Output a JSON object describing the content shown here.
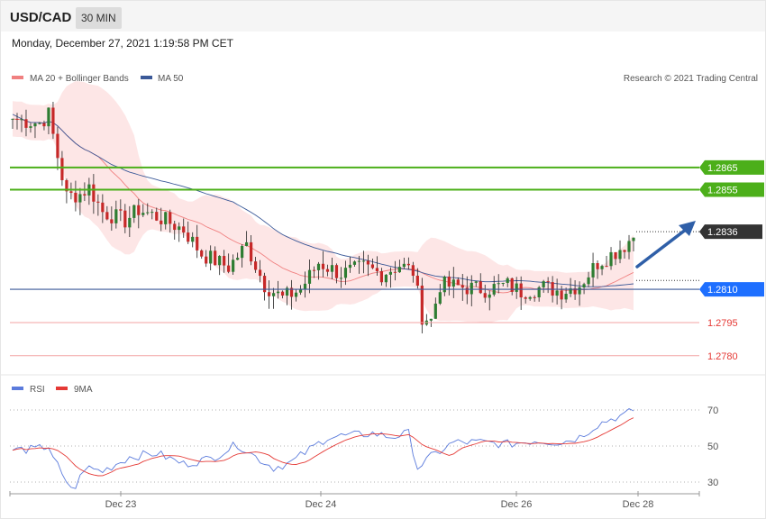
{
  "header": {
    "symbol": "USD/CAD",
    "timeframe": "30 MIN"
  },
  "datetime": "Monday, December 27, 2021 1:19:58 PM CET",
  "legend": {
    "ma20": "MA 20 + Bollinger Bands",
    "ma50": "MA 50",
    "rsi": "RSI",
    "ma9": "9MA",
    "copyright": "Research © 2021 Trading Central"
  },
  "colors": {
    "up": "#2e7d32",
    "down": "#c62828",
    "ma20": "#f08080",
    "ma50": "#3b5998",
    "band": "#fde0e0",
    "resistance": "#4caf1a",
    "support": "#1e6fff",
    "support_red": "#e53935",
    "current": "#333333",
    "rsi": "#5b7bdc",
    "ma9": "#e53935",
    "arrow": "#2f5fa8"
  },
  "chart_data": {
    "type": "candlestick",
    "y_range": [
      1.2773,
      1.2902
    ],
    "x_ticks": [
      "Dec 23",
      "Dec 24",
      "Dec 26",
      "Dec 28"
    ],
    "levels": [
      {
        "value": 1.2865,
        "label": "1.2865",
        "kind": "resistance"
      },
      {
        "value": 1.2855,
        "label": "1.2855",
        "kind": "resistance"
      },
      {
        "value": 1.2836,
        "label": "1.2836",
        "kind": "current"
      },
      {
        "value": 1.281,
        "label": "1.2810",
        "kind": "support"
      },
      {
        "value": 1.2795,
        "label": "1.2795",
        "kind": "support_red"
      },
      {
        "value": 1.278,
        "label": "1.2780",
        "kind": "support_red"
      }
    ],
    "anchors": [
      [
        0,
        1.2887
      ],
      [
        6,
        1.2885
      ],
      [
        8,
        1.2889
      ],
      [
        10,
        1.287
      ],
      [
        12,
        1.2852
      ],
      [
        15,
        1.2853
      ],
      [
        17,
        1.2856
      ],
      [
        20,
        1.2845
      ],
      [
        25,
        1.2841
      ],
      [
        28,
        1.2846
      ],
      [
        33,
        1.2842
      ],
      [
        38,
        1.2837
      ],
      [
        42,
        1.2826
      ],
      [
        48,
        1.282
      ],
      [
        52,
        1.283
      ],
      [
        56,
        1.2812
      ],
      [
        60,
        1.2806
      ],
      [
        64,
        1.281
      ],
      [
        68,
        1.2822
      ],
      [
        73,
        1.2817
      ],
      [
        78,
        1.282
      ],
      [
        82,
        1.2817
      ],
      [
        86,
        1.2821
      ],
      [
        89,
        1.2818
      ],
      [
        91,
        1.2798
      ],
      [
        93,
        1.2796
      ],
      [
        95,
        1.2812
      ],
      [
        100,
        1.2811
      ],
      [
        105,
        1.281
      ],
      [
        110,
        1.2812
      ],
      [
        113,
        1.2809
      ],
      [
        118,
        1.2811
      ],
      [
        122,
        1.2809
      ],
      [
        126,
        1.2812
      ],
      [
        130,
        1.2822
      ],
      [
        134,
        1.2827
      ],
      [
        136,
        1.283
      ],
      [
        138,
        1.2834
      ]
    ],
    "candle_count": 139,
    "rsi": {
      "levels": [
        70,
        50,
        30
      ],
      "range": [
        25,
        75
      ],
      "anchors": [
        [
          0,
          48
        ],
        [
          5,
          48
        ],
        [
          8,
          50
        ],
        [
          12,
          28
        ],
        [
          14,
          27
        ],
        [
          16,
          38
        ],
        [
          20,
          36
        ],
        [
          26,
          44
        ],
        [
          32,
          46
        ],
        [
          38,
          40
        ],
        [
          44,
          43
        ],
        [
          50,
          51
        ],
        [
          54,
          44
        ],
        [
          58,
          38
        ],
        [
          62,
          41
        ],
        [
          66,
          48
        ],
        [
          70,
          55
        ],
        [
          76,
          56
        ],
        [
          80,
          57
        ],
        [
          84,
          55
        ],
        [
          88,
          57
        ],
        [
          90,
          38
        ],
        [
          93,
          44
        ],
        [
          98,
          52
        ],
        [
          104,
          52
        ],
        [
          110,
          51
        ],
        [
          116,
          53
        ],
        [
          122,
          52
        ],
        [
          126,
          55
        ],
        [
          130,
          62
        ],
        [
          134,
          66
        ],
        [
          136,
          67
        ],
        [
          138,
          70
        ]
      ]
    }
  }
}
